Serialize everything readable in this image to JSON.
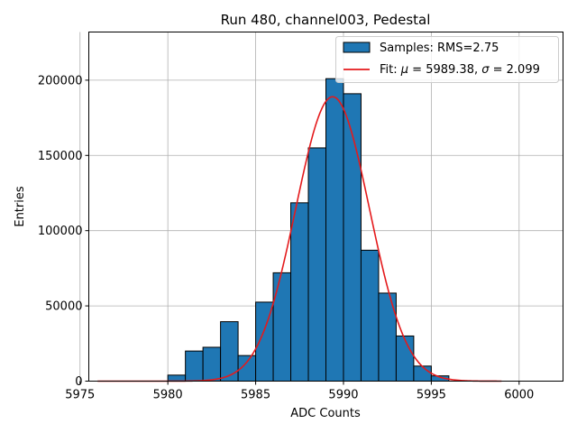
{
  "chart_data": {
    "type": "bar",
    "title": "Run 480, channel003, Pedestal",
    "xlabel": "ADC Counts",
    "ylabel": "Entries",
    "xlim": [
      5975.5,
      6002.5
    ],
    "ylim": [
      0,
      232000
    ],
    "grid": true,
    "legend_position": "top-right",
    "x_ticks": [
      5975,
      5980,
      5985,
      5990,
      5995,
      6000
    ],
    "y_ticks": [
      0,
      50000,
      100000,
      150000,
      200000
    ],
    "x_tick_labels": [
      "5975",
      "5980",
      "5985",
      "5990",
      "5995",
      "6000"
    ],
    "y_tick_labels": [
      "0",
      "50000",
      "100000",
      "150000",
      "200000"
    ],
    "histogram": {
      "name": "Samples: RMS=2.75",
      "color": "#1f77b4",
      "edge_color": "#000000",
      "bin_edges": [
        5980,
        5981,
        5982,
        5983,
        5984,
        5985,
        5986,
        5987,
        5988,
        5989,
        5990,
        5991,
        5992,
        5993,
        5994,
        5995,
        5996
      ],
      "counts": [
        4000,
        20000,
        22500,
        39500,
        17000,
        52500,
        72000,
        118500,
        155000,
        201000,
        191000,
        87000,
        58500,
        30000,
        10000,
        3500
      ]
    },
    "fit": {
      "name": "Fit: μ = 5989.38, σ = 2.099",
      "label_prefix": "Fit: ",
      "mu_symbol": "μ",
      "mu_text": " = 5989.38, ",
      "sigma_symbol": "σ",
      "sigma_text": " = 2.099",
      "color": "#e41a1c",
      "mu": 5989.38,
      "sigma": 2.099,
      "amplitude": 189000,
      "x_range": [
        5976,
        5999
      ]
    }
  }
}
